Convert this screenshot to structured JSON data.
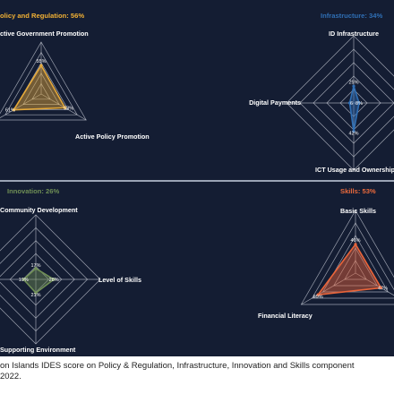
{
  "chart_data": [
    {
      "type": "radar",
      "title": "olicy and Regulation: 56%",
      "title_color": "#f2b134",
      "fill_color": "#e5a93a",
      "axes": [
        "ctive Government Promotion",
        "Active Policy Promotion",
        ""
      ],
      "values": [
        55,
        53,
        61
      ],
      "value_labels": [
        "55%",
        "53%",
        "61%"
      ]
    },
    {
      "type": "radar",
      "title": "Infrastructure: 34%",
      "title_color": "#2f6fb5",
      "fill_color": "#2f6fb5",
      "axes": [
        "ID Infrastructure",
        "Digital Payments",
        "ICT Usage and Ownership",
        ""
      ],
      "values": [
        25,
        8,
        42,
        6
      ],
      "value_labels": [
        "25%",
        "8%",
        "42%",
        "6"
      ]
    },
    {
      "type": "radar",
      "title": "Innovation: 26%",
      "title_color": "#6f8f55",
      "fill_color": "#6f8f55",
      "axes": [
        "Community Development",
        "Level of Skills",
        "Supporting Environment",
        ""
      ],
      "values": [
        17,
        28,
        21,
        19
      ],
      "value_labels": [
        "17%",
        "28%",
        "21%",
        "19%"
      ]
    },
    {
      "type": "radar",
      "title": "Skills: 53%",
      "title_color": "#ec6a3c",
      "fill_color": "#e8643a",
      "axes": [
        "Basic Skills",
        "",
        "Financial Literacy"
      ],
      "values": [
        46,
        47,
        69
      ],
      "value_labels": [
        "46%",
        "47%",
        "69%"
      ]
    }
  ],
  "caption": {
    "line1": "on Islands IDES score on Policy & Regulation, Infrastructure, Innovation and Skills component",
    "line2": "2022."
  }
}
